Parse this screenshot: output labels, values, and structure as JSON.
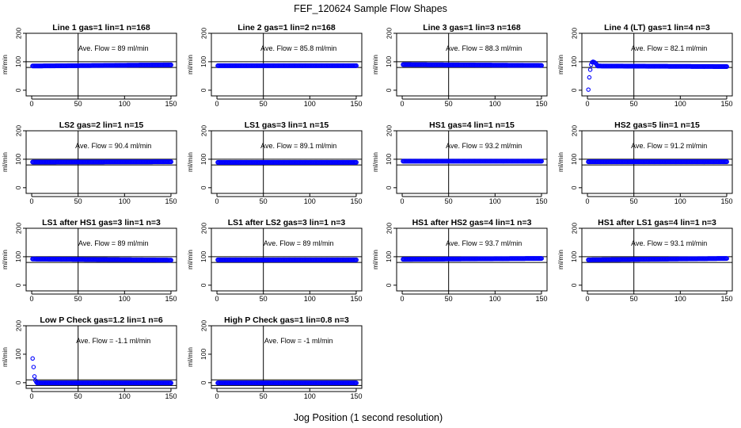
{
  "figure": {
    "title": "FEF_120624  Sample Flow Shapes",
    "xlabel": "Jog Position (1 second resolution)"
  },
  "chart_data": [
    {
      "type": "scatter",
      "title": "Line 1 gas=1 lin=1 n=168",
      "ylabel": "ml/min",
      "xlim": [
        0,
        150
      ],
      "ylim": [
        -20,
        200
      ],
      "xticks": [
        0,
        50,
        100,
        150
      ],
      "yticks": [
        0,
        100,
        200
      ],
      "vline": 50,
      "hlines": [
        80,
        100
      ],
      "annotation": "Ave. Flow =  89  ml/min",
      "series": [
        {
          "color": "#0000ff",
          "x_range": [
            1,
            150
          ],
          "y_start": 85,
          "y_end": 89,
          "early": []
        }
      ]
    },
    {
      "type": "scatter",
      "title": "Line 2 gas=1 lin=2 n=168",
      "ylabel": "ml/min",
      "xlim": [
        0,
        150
      ],
      "ylim": [
        -20,
        200
      ],
      "xticks": [
        0,
        50,
        100,
        150
      ],
      "yticks": [
        0,
        100,
        200
      ],
      "vline": 50,
      "hlines": [
        80,
        100
      ],
      "annotation": "Ave. Flow =  85.8  ml/min",
      "series": [
        {
          "color": "#0000ff",
          "x_range": [
            1,
            150
          ],
          "y_start": 86,
          "y_end": 86,
          "early": []
        }
      ]
    },
    {
      "type": "scatter",
      "title": "Line 3 gas=1 lin=3 n=168",
      "ylabel": "ml/min",
      "xlim": [
        0,
        150
      ],
      "ylim": [
        -20,
        200
      ],
      "xticks": [
        0,
        50,
        100,
        150
      ],
      "yticks": [
        0,
        100,
        200
      ],
      "vline": 50,
      "hlines": [
        80,
        100
      ],
      "annotation": "Ave. Flow =  88.3  ml/min",
      "series": [
        {
          "color": "#0000ff",
          "x_range": [
            1,
            150
          ],
          "y_start": 90,
          "y_end": 87,
          "early": []
        }
      ]
    },
    {
      "type": "scatter",
      "title": "Line 4 (LT) gas=1 lin=4 n=3",
      "ylabel": "ml/min",
      "xlim": [
        0,
        150
      ],
      "ylim": [
        -20,
        200
      ],
      "xticks": [
        0,
        50,
        100,
        150
      ],
      "yticks": [
        0,
        100,
        200
      ],
      "vline": 50,
      "hlines": [
        80,
        100
      ],
      "annotation": "Ave. Flow =  82.1  ml/min",
      "series": [
        {
          "color": "#0000ff",
          "x_range": [
            11,
            150
          ],
          "y_start": 85,
          "y_end": 83,
          "early": [
            [
              1,
              2
            ],
            [
              2,
              45
            ],
            [
              3,
              72
            ],
            [
              4,
              90
            ],
            [
              5,
              98
            ],
            [
              6,
              100
            ],
            [
              7,
              99
            ],
            [
              8,
              97
            ],
            [
              9,
              94
            ],
            [
              10,
              90
            ]
          ]
        }
      ]
    },
    {
      "type": "scatter",
      "title": "LS2 gas=2 lin=1 n=15",
      "ylabel": "ml/min",
      "xlim": [
        0,
        150
      ],
      "ylim": [
        -20,
        200
      ],
      "xticks": [
        0,
        50,
        100,
        150
      ],
      "yticks": [
        0,
        100,
        200
      ],
      "vline": 50,
      "hlines": [
        80,
        100
      ],
      "annotation": "Ave. Flow =  90.4  ml/min",
      "series": [
        {
          "color": "#0000ff",
          "x_range": [
            1,
            150
          ],
          "y_start": 90,
          "y_end": 91,
          "early": []
        }
      ]
    },
    {
      "type": "scatter",
      "title": "LS1 gas=3 lin=1 n=15",
      "ylabel": "ml/min",
      "xlim": [
        0,
        150
      ],
      "ylim": [
        -20,
        200
      ],
      "xticks": [
        0,
        50,
        100,
        150
      ],
      "yticks": [
        0,
        100,
        200
      ],
      "vline": 50,
      "hlines": [
        80,
        100
      ],
      "annotation": "Ave. Flow =  89.1  ml/min",
      "series": [
        {
          "color": "#0000ff",
          "x_range": [
            1,
            150
          ],
          "y_start": 89,
          "y_end": 89,
          "early": []
        }
      ]
    },
    {
      "type": "scatter",
      "title": "HS1 gas=4 lin=1 n=15",
      "ylabel": "ml/min",
      "xlim": [
        0,
        150
      ],
      "ylim": [
        -20,
        200
      ],
      "xticks": [
        0,
        50,
        100,
        150
      ],
      "yticks": [
        0,
        100,
        200
      ],
      "vline": 50,
      "hlines": [
        80,
        100
      ],
      "annotation": "Ave. Flow =  93.2  ml/min",
      "series": [
        {
          "color": "#0000ff",
          "x_range": [
            1,
            150
          ],
          "y_start": 93,
          "y_end": 93,
          "early": []
        }
      ]
    },
    {
      "type": "scatter",
      "title": "HS2 gas=5 lin=1 n=15",
      "ylabel": "ml/min",
      "xlim": [
        0,
        150
      ],
      "ylim": [
        -20,
        200
      ],
      "xticks": [
        0,
        50,
        100,
        150
      ],
      "yticks": [
        0,
        100,
        200
      ],
      "vline": 50,
      "hlines": [
        80,
        100
      ],
      "annotation": "Ave. Flow =  91.2  ml/min",
      "series": [
        {
          "color": "#0000ff",
          "x_range": [
            1,
            150
          ],
          "y_start": 91,
          "y_end": 91,
          "early": []
        }
      ]
    },
    {
      "type": "scatter",
      "title": "LS1 after HS1 gas=3 lin=1 n=3",
      "ylabel": "ml/min",
      "xlim": [
        0,
        150
      ],
      "ylim": [
        -20,
        200
      ],
      "xticks": [
        0,
        50,
        100,
        150
      ],
      "yticks": [
        0,
        100,
        200
      ],
      "vline": 50,
      "hlines": [
        80,
        100
      ],
      "annotation": "Ave. Flow =  89  ml/min",
      "series": [
        {
          "color": "#0000ff",
          "x_range": [
            1,
            150
          ],
          "y_start": 92,
          "y_end": 88,
          "early": []
        }
      ]
    },
    {
      "type": "scatter",
      "title": "LS1 after LS2 gas=3 lin=1 n=3",
      "ylabel": "ml/min",
      "xlim": [
        0,
        150
      ],
      "ylim": [
        -20,
        200
      ],
      "xticks": [
        0,
        50,
        100,
        150
      ],
      "yticks": [
        0,
        100,
        200
      ],
      "vline": 50,
      "hlines": [
        80,
        100
      ],
      "annotation": "Ave. Flow =  89  ml/min",
      "series": [
        {
          "color": "#0000ff",
          "x_range": [
            1,
            150
          ],
          "y_start": 89,
          "y_end": 89,
          "early": []
        }
      ]
    },
    {
      "type": "scatter",
      "title": "HS1 after HS2 gas=4 lin=1 n=3",
      "ylabel": "ml/min",
      "xlim": [
        0,
        150
      ],
      "ylim": [
        -20,
        200
      ],
      "xticks": [
        0,
        50,
        100,
        150
      ],
      "yticks": [
        0,
        100,
        200
      ],
      "vline": 50,
      "hlines": [
        80,
        100
      ],
      "annotation": "Ave. Flow =  93.7  ml/min",
      "series": [
        {
          "color": "#0000ff",
          "x_range": [
            1,
            150
          ],
          "y_start": 91,
          "y_end": 94,
          "early": []
        }
      ]
    },
    {
      "type": "scatter",
      "title": "HS1 after LS1 gas=4 lin=1 n=3",
      "ylabel": "ml/min",
      "xlim": [
        0,
        150
      ],
      "ylim": [
        -20,
        200
      ],
      "xticks": [
        0,
        50,
        100,
        150
      ],
      "yticks": [
        0,
        100,
        200
      ],
      "vline": 50,
      "hlines": [
        80,
        100
      ],
      "annotation": "Ave. Flow =  93.1  ml/min",
      "series": [
        {
          "color": "#0000ff",
          "x_range": [
            1,
            150
          ],
          "y_start": 89,
          "y_end": 94,
          "early": []
        }
      ]
    },
    {
      "type": "scatter",
      "title": "Low P Check gas=1.2 lin=1 n=6",
      "ylabel": "ml/min",
      "xlim": [
        0,
        150
      ],
      "ylim": [
        -20,
        200
      ],
      "xticks": [
        0,
        50,
        100,
        150
      ],
      "yticks": [
        0,
        100,
        200
      ],
      "vline": 50,
      "hlines": [
        -10,
        10
      ],
      "annotation": "Ave. Flow =  -1.1  ml/min",
      "series": [
        {
          "color": "#0000ff",
          "x_range": [
            6,
            150
          ],
          "y_start": -1,
          "y_end": -1,
          "early": [
            [
              1,
              85
            ],
            [
              2,
              55
            ],
            [
              3,
              22
            ],
            [
              4,
              8
            ],
            [
              5,
              2
            ]
          ]
        }
      ]
    },
    {
      "type": "scatter",
      "title": "High P Check gas=1 lin=0.8 n=3",
      "ylabel": "ml/min",
      "xlim": [
        0,
        150
      ],
      "ylim": [
        -20,
        200
      ],
      "xticks": [
        0,
        50,
        100,
        150
      ],
      "yticks": [
        0,
        100,
        200
      ],
      "vline": 50,
      "hlines": [
        -10,
        10
      ],
      "annotation": "Ave. Flow =  -1  ml/min",
      "series": [
        {
          "color": "#0000ff",
          "x_range": [
            1,
            150
          ],
          "y_start": -1,
          "y_end": -1,
          "early": []
        }
      ]
    }
  ]
}
